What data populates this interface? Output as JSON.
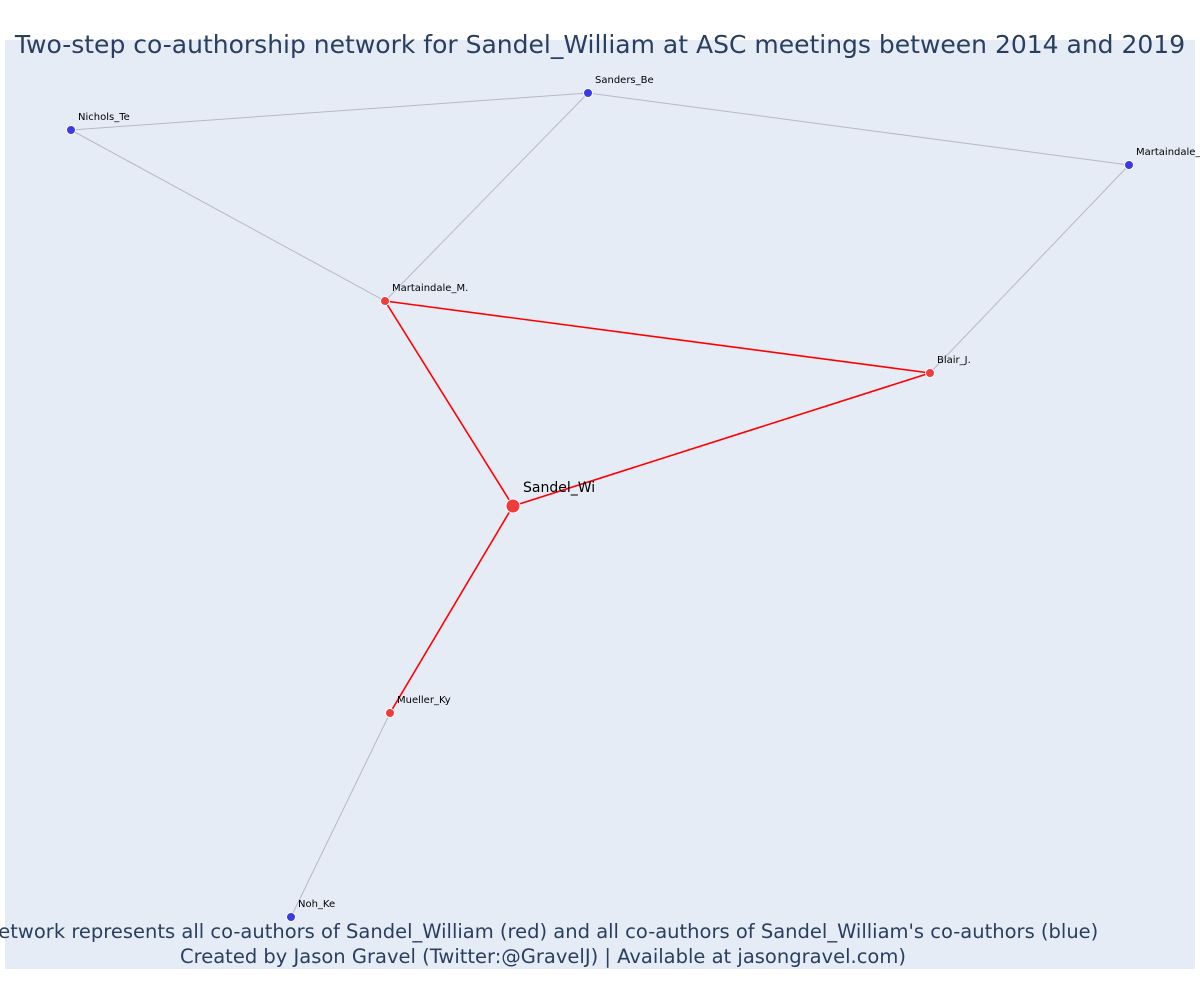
{
  "title": "Two-step co-authorship network for Sandel_William at ASC meetings between 2014 and 2019",
  "caption_line1": "Network represents all co-authors of Sandel_William (red) and all co-authors of Sandel_William's co-authors (blue)",
  "caption_line2": "Created by Jason Gravel (Twitter:@GravelJ) | Available at jasongravel.com)",
  "colors": {
    "background": "#e5ecf6",
    "direct": "#ff0000",
    "direct_node": "#ef3b3b",
    "second_step": "#b7b7c8",
    "second_step_node": "#3a3ae8",
    "title": "#2a3f5f"
  },
  "nodes": [
    {
      "id": "sandel",
      "label": "Sandel_Wi",
      "group": "focal"
    },
    {
      "id": "martaindale_m",
      "label": "Martaindale_M.",
      "group": "direct"
    },
    {
      "id": "blair",
      "label": "Blair_J.",
      "group": "direct"
    },
    {
      "id": "mueller",
      "label": "Mueller_Ky",
      "group": "direct"
    },
    {
      "id": "sanders",
      "label": "Sanders_Be",
      "group": "second"
    },
    {
      "id": "nichols",
      "label": "Nichols_Te",
      "group": "second"
    },
    {
      "id": "martaindale_2",
      "label": "Martaindale_",
      "group": "second"
    },
    {
      "id": "noh",
      "label": "Noh_Ke",
      "group": "second"
    }
  ],
  "edges": [
    {
      "source": "sandel",
      "target": "martaindale_m",
      "type": "direct"
    },
    {
      "source": "sandel",
      "target": "blair",
      "type": "direct"
    },
    {
      "source": "sandel",
      "target": "mueller",
      "type": "direct"
    },
    {
      "source": "martaindale_m",
      "target": "blair",
      "type": "direct"
    },
    {
      "source": "martaindale_m",
      "target": "nichols",
      "type": "second"
    },
    {
      "source": "martaindale_m",
      "target": "sanders",
      "type": "second"
    },
    {
      "source": "nichols",
      "target": "sanders",
      "type": "second"
    },
    {
      "source": "sanders",
      "target": "martaindale_2",
      "type": "second"
    },
    {
      "source": "martaindale_2",
      "target": "blair",
      "type": "second"
    },
    {
      "source": "mueller",
      "target": "noh",
      "type": "second"
    }
  ]
}
